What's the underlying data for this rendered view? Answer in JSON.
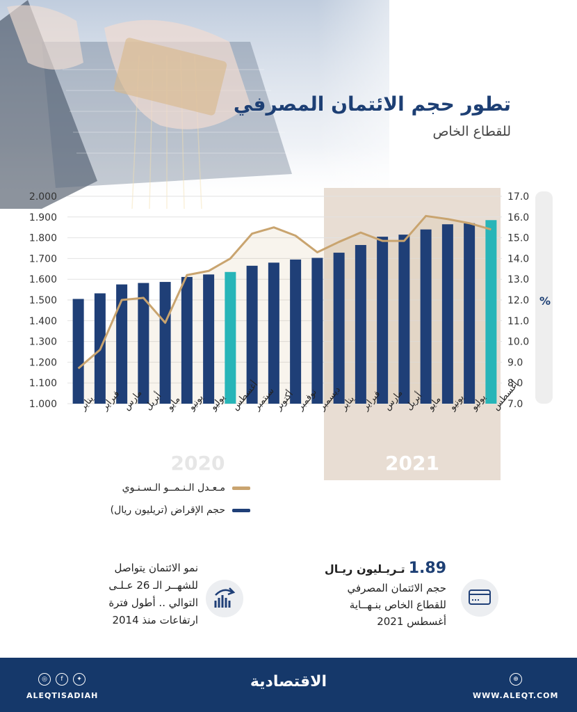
{
  "header": {
    "title": "تطور حجم الائتمان المصرفي",
    "subtitle": "للقطاع الخاص"
  },
  "chart_data": {
    "type": "bar",
    "categories": [
      "يناير",
      "فبراير",
      "مارس",
      "أبريل",
      "مايو",
      "يونيو",
      "يوليو",
      "أغسطس",
      "سبتمبر",
      "أكتوبر",
      "نوفمبر",
      "ديسمبر",
      "يناير",
      "فبراير",
      "مارس",
      "أبريل",
      "مايو",
      "يونيو",
      "يوليو",
      "أغسطس"
    ],
    "series": [
      {
        "name": "حجم الإقراض (تريليون ريال)",
        "type": "bar",
        "axis": "left",
        "values": [
          1.505,
          1.532,
          1.575,
          1.582,
          1.587,
          1.611,
          1.623,
          1.635,
          1.665,
          1.68,
          1.695,
          1.703,
          1.728,
          1.765,
          1.805,
          1.815,
          1.84,
          1.865,
          1.87,
          1.885
        ]
      },
      {
        "name": "مـعـدل الـنـمــو الـسـنـوي",
        "type": "line",
        "axis": "right",
        "values": [
          8.7,
          9.6,
          12.0,
          12.1,
          10.9,
          13.2,
          13.4,
          14.0,
          15.2,
          15.5,
          15.1,
          14.3,
          14.8,
          15.25,
          14.85,
          14.85,
          16.05,
          15.9,
          15.7,
          15.4
        ]
      }
    ],
    "highlight_indices": [
      7,
      19
    ],
    "years": [
      "2020",
      "2021"
    ],
    "year_split_index": 12,
    "yleft_ticks": [
      "2.000",
      "1.900",
      "1.800",
      "1.700",
      "1.600",
      "1.500",
      "1.400",
      "1.300",
      "1.200",
      "1.100",
      "1.000"
    ],
    "yleft_lim": [
      1.0,
      2.0
    ],
    "yright_ticks": [
      "17.0",
      "16.0",
      "15.0",
      "14.0",
      "13.0",
      "12.0",
      "11.0",
      "10.0",
      "9.0",
      "8.0",
      "7.0"
    ],
    "yright_lim": [
      7.0,
      17.0
    ],
    "yright_unit": "%",
    "colors": {
      "bar": "#1f3f77",
      "bar_highlight": "#27b5b8",
      "line": "#c9a46f",
      "shade": "#e8ddd3"
    }
  },
  "legend": {
    "growth": "مـعـدل الـنـمــو الـسـنـوي",
    "volume": "حجم الإقراض (تريليون ريال)"
  },
  "info_right": {
    "value": "1.89",
    "unit": "تـريـليون ريـال",
    "line1": "حجم الائتمان المصرفي",
    "line2": "للقطاع الخاص بنـهــاية",
    "line3": "أغسطس 2021"
  },
  "info_left": {
    "line1": "نمو الائتمان يتواصل",
    "line2": "للشهــر الـ 26 عـلـى",
    "line3": "التوالي .. أطول فترة",
    "line4": "ارتفاعات منذ 2014"
  },
  "footer": {
    "handle": "ALEQTISADIAH",
    "logo": "الاقتصادية",
    "website": "WWW.ALEQT.COM"
  }
}
